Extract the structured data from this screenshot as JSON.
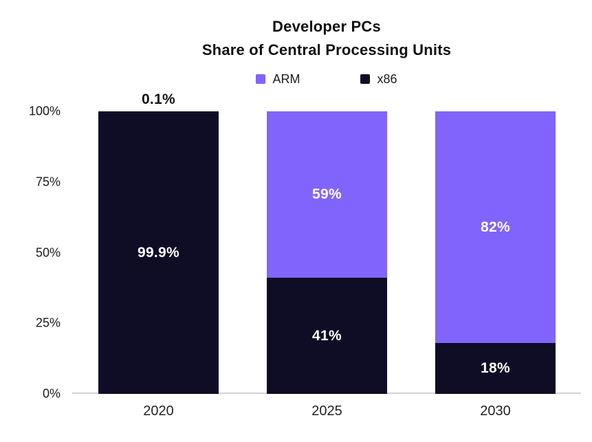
{
  "title": {
    "line1": "Developer PCs",
    "line2": "Share of Central Processing Units"
  },
  "colors": {
    "arm_purple": "#8164fb",
    "x86_navy": "#0f0c26",
    "axis_line": "#d4d4d4",
    "title_text": "#111111",
    "bar_label_text": "#ffffff"
  },
  "chart_data": {
    "type": "bar",
    "stacked": true,
    "title_line1": "Developer PCs",
    "title_line2": "Share of Central Processing Units",
    "categories": [
      "2020",
      "2025",
      "2030"
    ],
    "series": [
      {
        "name": "ARM",
        "color": "#8164fb",
        "values": [
          0.1,
          59,
          82
        ],
        "labels": [
          "0.1%",
          "59%",
          "82%"
        ]
      },
      {
        "name": "x86",
        "color": "#0f0c26",
        "values": [
          99.9,
          41,
          18
        ],
        "labels": [
          "99.9%",
          "41%",
          "18%"
        ]
      }
    ],
    "xlabel": "",
    "ylabel": "",
    "ylim": [
      0,
      100
    ],
    "y_ticks": [
      "100%",
      "75%",
      "50%",
      "25%",
      "0%"
    ],
    "grid": false,
    "legend_position": "top"
  }
}
